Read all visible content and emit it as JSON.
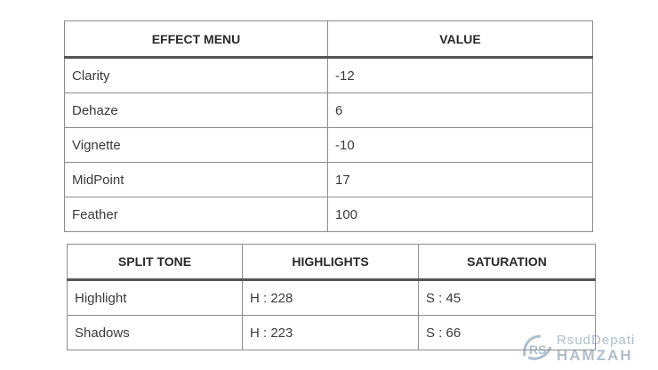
{
  "effect_table": {
    "headers": [
      "EFFECT MENU",
      "VALUE"
    ],
    "rows": [
      [
        "Clarity",
        "-12"
      ],
      [
        "Dehaze",
        "6"
      ],
      [
        "Vignette",
        "-10"
      ],
      [
        "MidPoint",
        "17"
      ],
      [
        "Feather",
        "100"
      ]
    ]
  },
  "split_tone_table": {
    "headers": [
      "SPLIT TONE",
      "HIGHLIGHTS",
      "SATURATION"
    ],
    "rows": [
      [
        "Highlight",
        "H : 228",
        "S : 45"
      ],
      [
        "Shadows",
        "H : 223",
        "S : 66"
      ]
    ]
  },
  "watermark": {
    "logo_text": "RS",
    "line1": "RsudDepati",
    "line2": "HAMZAH",
    "color": "#6f8aa6"
  }
}
